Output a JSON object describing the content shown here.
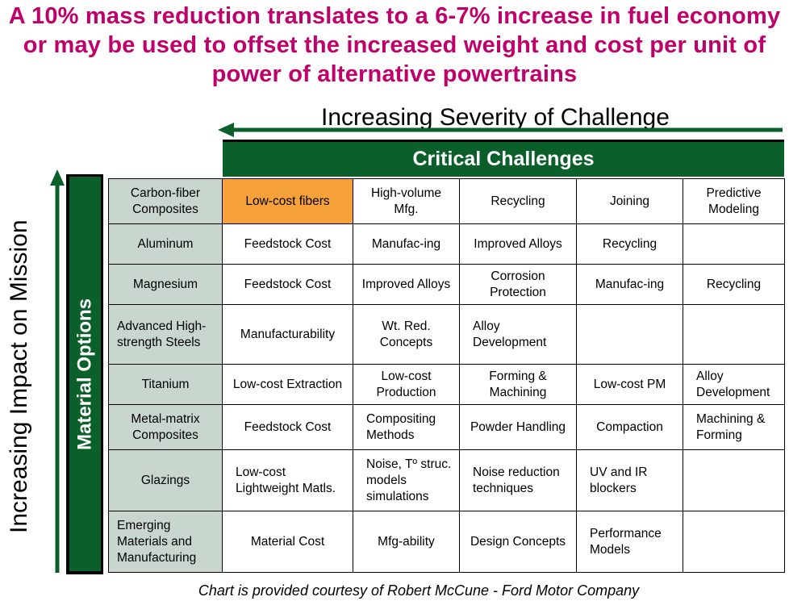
{
  "headline": "A 10% mass reduction translates to a 6-7% increase in fuel economy or may be used to offset the increased weight and cost per unit of power of alternative powertrains",
  "severity_axis_label": "Increasing Severity of Challenge",
  "impact_axis_label": "Increasing Impact on Mission",
  "material_options_label": "Material Options",
  "critical_challenges_label": "Critical Challenges",
  "colors": {
    "headline": "#c0006a",
    "header_green": "#0b5f2b",
    "material_cell": "#c9d6cd",
    "highlight": "#f7a13a"
  },
  "rows": [
    {
      "material": "Carbon-fiber Composites",
      "cells": [
        "Low-cost fibers",
        "High-volume Mfg.",
        "Recycling",
        "Joining",
        "Predictive Modeling"
      ]
    },
    {
      "material": "Aluminum",
      "cells": [
        "Feedstock Cost",
        "Manufac-ing",
        "Improved Alloys",
        "Recycling",
        ""
      ]
    },
    {
      "material": "Magnesium",
      "cells": [
        "Feedstock Cost",
        "Improved Alloys",
        "Corrosion Protection",
        "Manufac-ing",
        "Recycling"
      ]
    },
    {
      "material": "Advanced High-strength Steels",
      "cells": [
        "Manufacturability",
        "Wt. Red. Concepts",
        "Alloy Development",
        "",
        ""
      ]
    },
    {
      "material": "Titanium",
      "cells": [
        "Low-cost Extraction",
        "Low-cost Production",
        "Forming & Machining",
        "Low-cost PM",
        "Alloy Development"
      ]
    },
    {
      "material": "Metal-matrix Composites",
      "cells": [
        "Feedstock Cost",
        "Compositing Methods",
        "Powder Handling",
        "Compaction",
        "Machining & Forming"
      ]
    },
    {
      "material": "Glazings",
      "cells": [
        "Low-cost Lightweight Matls.",
        "Noise, Tº struc. models simulations",
        "Noise reduction techniques",
        "UV and IR blockers",
        ""
      ]
    },
    {
      "material": "Emerging Materials and Manufacturing",
      "cells": [
        "Material Cost",
        "Mfg-ability",
        "Design Concepts",
        "Performance Models",
        ""
      ]
    }
  ],
  "footer": "Chart is provided courtesy of Robert McCune - Ford Motor Company"
}
